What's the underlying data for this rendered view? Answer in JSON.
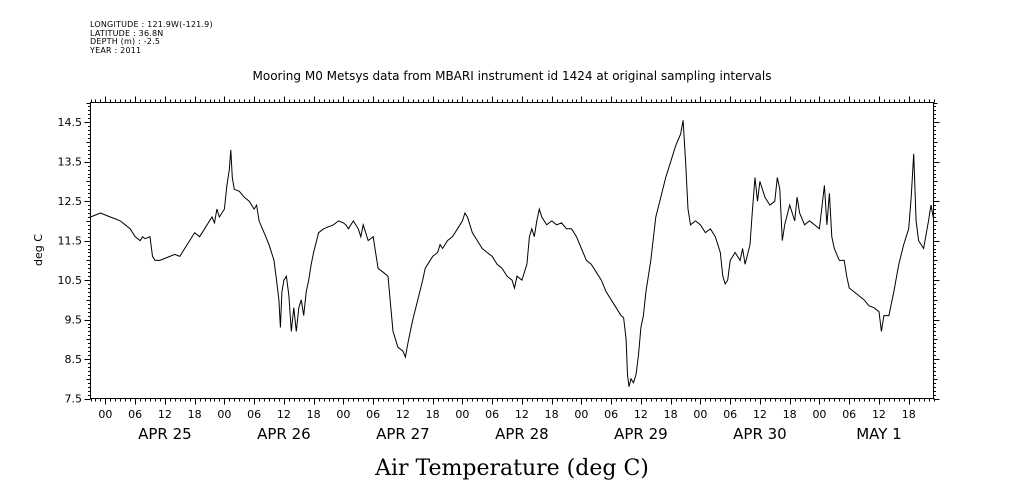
{
  "header": {
    "longitude": "LONGITUDE : 121.9W(-121.9)",
    "latitude": "LATITUDE : 36.8N",
    "depth": "DEPTH (m) : -2.5",
    "year": "YEAR : 2011"
  },
  "chart_data": {
    "type": "line",
    "title": "Mooring M0 Metsys data from MBARI instrument id 1424 at original sampling intervals",
    "xlabel": "Air Temperature (deg C)",
    "ylabel": "deg C",
    "ylim": [
      7.5,
      15.0
    ],
    "yticks": [
      "7.5",
      "8.5",
      "9.5",
      "10.5",
      "11.5",
      "12.5",
      "13.5",
      "14.5"
    ],
    "x_unit": "hours since 2011-04-25 00:00",
    "xlim": [
      -3,
      167
    ],
    "hour_tick_labels": [
      "00",
      "06",
      "12",
      "18",
      "00",
      "06",
      "12",
      "18",
      "00",
      "06",
      "12",
      "18",
      "00",
      "06",
      "12",
      "18",
      "00",
      "06",
      "12",
      "18",
      "00",
      "06",
      "12",
      "18",
      "00",
      "06",
      "12",
      "18"
    ],
    "date_labels": [
      "APR 25",
      "APR 26",
      "APR 27",
      "APR 28",
      "APR 29",
      "APR 30",
      "MAY  1"
    ],
    "grid": false,
    "series": [
      {
        "points": [
          [
            -3,
            12.1
          ],
          [
            -2,
            12.15
          ],
          [
            -1,
            12.2
          ],
          [
            0,
            12.15
          ],
          [
            1,
            12.1
          ],
          [
            2,
            12.05
          ],
          [
            3,
            12.0
          ],
          [
            4,
            11.9
          ],
          [
            5,
            11.8
          ],
          [
            6,
            11.6
          ],
          [
            7,
            11.5
          ],
          [
            7.5,
            11.6
          ],
          [
            8,
            11.55
          ],
          [
            9,
            11.6
          ],
          [
            9.5,
            11.1
          ],
          [
            10,
            11.0
          ],
          [
            11,
            11.0
          ],
          [
            12,
            11.05
          ],
          [
            13,
            11.1
          ],
          [
            14,
            11.15
          ],
          [
            15,
            11.1
          ],
          [
            16,
            11.3
          ],
          [
            17,
            11.5
          ],
          [
            18,
            11.7
          ],
          [
            19,
            11.6
          ],
          [
            20,
            11.8
          ],
          [
            21,
            12.0
          ],
          [
            21.5,
            12.1
          ],
          [
            22,
            11.95
          ],
          [
            22.5,
            12.3
          ],
          [
            23,
            12.1
          ],
          [
            24,
            12.3
          ],
          [
            24.5,
            12.9
          ],
          [
            25,
            13.3
          ],
          [
            25.3,
            13.8
          ],
          [
            25.6,
            13.1
          ],
          [
            26,
            12.8
          ],
          [
            27,
            12.75
          ],
          [
            28,
            12.6
          ],
          [
            29,
            12.5
          ],
          [
            30,
            12.3
          ],
          [
            30.5,
            12.4
          ],
          [
            31,
            12.0
          ],
          [
            32,
            11.7
          ],
          [
            33,
            11.4
          ],
          [
            34,
            11.0
          ],
          [
            34.5,
            10.5
          ],
          [
            35,
            10.0
          ],
          [
            35.3,
            9.3
          ],
          [
            35.6,
            10.2
          ],
          [
            36,
            10.5
          ],
          [
            36.5,
            10.6
          ],
          [
            37,
            10.1
          ],
          [
            37.5,
            9.2
          ],
          [
            38,
            9.8
          ],
          [
            38.5,
            9.2
          ],
          [
            39,
            9.8
          ],
          [
            39.5,
            10.0
          ],
          [
            40,
            9.6
          ],
          [
            40.5,
            10.2
          ],
          [
            41,
            10.5
          ],
          [
            41.5,
            10.9
          ],
          [
            42,
            11.2
          ],
          [
            43,
            11.7
          ],
          [
            44,
            11.8
          ],
          [
            45,
            11.85
          ],
          [
            46,
            11.9
          ],
          [
            47,
            12.0
          ],
          [
            48,
            11.95
          ],
          [
            48.5,
            11.9
          ],
          [
            49,
            11.8
          ],
          [
            50,
            12.0
          ],
          [
            51,
            11.8
          ],
          [
            51.5,
            11.6
          ],
          [
            52,
            11.9
          ],
          [
            53,
            11.5
          ],
          [
            54,
            11.6
          ],
          [
            54.5,
            11.2
          ],
          [
            55,
            10.8
          ],
          [
            56,
            10.7
          ],
          [
            57,
            10.6
          ],
          [
            57.5,
            9.9
          ],
          [
            58,
            9.2
          ],
          [
            58.5,
            9.0
          ],
          [
            59,
            8.8
          ],
          [
            60,
            8.7
          ],
          [
            60.5,
            8.55
          ],
          [
            61,
            8.9
          ],
          [
            61.5,
            9.2
          ],
          [
            62,
            9.5
          ],
          [
            63,
            10.0
          ],
          [
            64,
            10.5
          ],
          [
            64.5,
            10.8
          ],
          [
            65,
            10.9
          ],
          [
            66,
            11.1
          ],
          [
            67,
            11.2
          ],
          [
            67.5,
            11.4
          ],
          [
            68,
            11.3
          ],
          [
            69,
            11.5
          ],
          [
            70,
            11.6
          ],
          [
            71,
            11.8
          ],
          [
            72,
            12.0
          ],
          [
            72.5,
            12.2
          ],
          [
            73,
            12.1
          ],
          [
            73.5,
            11.9
          ],
          [
            74,
            11.7
          ],
          [
            75,
            11.5
          ],
          [
            76,
            11.3
          ],
          [
            77,
            11.2
          ],
          [
            78,
            11.1
          ],
          [
            79,
            10.9
          ],
          [
            80,
            10.8
          ],
          [
            81,
            10.6
          ],
          [
            82,
            10.5
          ],
          [
            82.5,
            10.3
          ],
          [
            83,
            10.6
          ],
          [
            84,
            10.5
          ],
          [
            85,
            10.9
          ],
          [
            85.5,
            11.6
          ],
          [
            86,
            11.8
          ],
          [
            86.5,
            11.6
          ],
          [
            87,
            12.0
          ],
          [
            87.5,
            12.3
          ],
          [
            88,
            12.1
          ],
          [
            89,
            11.9
          ],
          [
            90,
            12.0
          ],
          [
            91,
            11.9
          ],
          [
            92,
            11.95
          ],
          [
            93,
            11.8
          ],
          [
            94,
            11.8
          ],
          [
            95,
            11.6
          ],
          [
            96,
            11.3
          ],
          [
            97,
            11.0
          ],
          [
            98,
            10.9
          ],
          [
            99,
            10.7
          ],
          [
            100,
            10.5
          ],
          [
            101,
            10.2
          ],
          [
            102,
            10.0
          ],
          [
            103,
            9.8
          ],
          [
            104,
            9.6
          ],
          [
            104.5,
            9.55
          ],
          [
            105,
            9.0
          ],
          [
            105.3,
            8.1
          ],
          [
            105.6,
            7.8
          ],
          [
            106,
            8.0
          ],
          [
            106.5,
            7.9
          ],
          [
            107,
            8.1
          ],
          [
            107.5,
            8.6
          ],
          [
            108,
            9.3
          ],
          [
            108.5,
            9.6
          ],
          [
            109,
            10.2
          ],
          [
            110,
            11.0
          ],
          [
            111,
            12.1
          ],
          [
            112,
            12.6
          ],
          [
            113,
            13.1
          ],
          [
            114,
            13.5
          ],
          [
            115,
            13.9
          ],
          [
            116,
            14.2
          ],
          [
            116.5,
            14.55
          ],
          [
            117,
            13.5
          ],
          [
            117.5,
            12.3
          ],
          [
            118,
            11.9
          ],
          [
            119,
            12.0
          ],
          [
            120,
            11.9
          ],
          [
            121,
            11.7
          ],
          [
            122,
            11.8
          ],
          [
            123,
            11.6
          ],
          [
            124,
            11.2
          ],
          [
            124.5,
            10.6
          ],
          [
            125,
            10.4
          ],
          [
            125.5,
            10.5
          ],
          [
            126,
            11.0
          ],
          [
            127,
            11.2
          ],
          [
            128,
            11.0
          ],
          [
            128.5,
            11.3
          ],
          [
            129,
            10.9
          ],
          [
            130,
            11.4
          ],
          [
            130.5,
            12.3
          ],
          [
            131,
            13.1
          ],
          [
            131.5,
            12.5
          ],
          [
            132,
            13.0
          ],
          [
            133,
            12.6
          ],
          [
            134,
            12.4
          ],
          [
            135,
            12.5
          ],
          [
            135.5,
            13.1
          ],
          [
            136,
            12.8
          ],
          [
            136.5,
            11.5
          ],
          [
            137,
            11.9
          ],
          [
            138,
            12.4
          ],
          [
            139,
            12.0
          ],
          [
            139.5,
            12.6
          ],
          [
            140,
            12.2
          ],
          [
            141,
            11.9
          ],
          [
            142,
            12.0
          ],
          [
            143,
            11.9
          ],
          [
            144,
            11.8
          ],
          [
            145,
            12.9
          ],
          [
            145.5,
            11.9
          ],
          [
            146,
            12.7
          ],
          [
            146.5,
            11.6
          ],
          [
            147,
            11.3
          ],
          [
            148,
            11.0
          ],
          [
            149,
            11.0
          ],
          [
            149.5,
            10.6
          ],
          [
            150,
            10.3
          ],
          [
            151,
            10.2
          ],
          [
            152,
            10.1
          ],
          [
            153,
            10.0
          ],
          [
            154,
            9.85
          ],
          [
            155,
            9.8
          ],
          [
            156,
            9.7
          ],
          [
            156.5,
            9.2
          ],
          [
            157,
            9.6
          ],
          [
            158,
            9.6
          ],
          [
            159,
            10.2
          ],
          [
            160,
            10.9
          ],
          [
            161,
            11.4
          ],
          [
            162,
            11.8
          ],
          [
            162.5,
            12.6
          ],
          [
            163,
            13.7
          ],
          [
            163.5,
            12.0
          ],
          [
            164,
            11.5
          ],
          [
            165,
            11.3
          ],
          [
            166,
            12.0
          ],
          [
            166.5,
            12.4
          ],
          [
            167,
            12.05
          ]
        ]
      }
    ]
  }
}
